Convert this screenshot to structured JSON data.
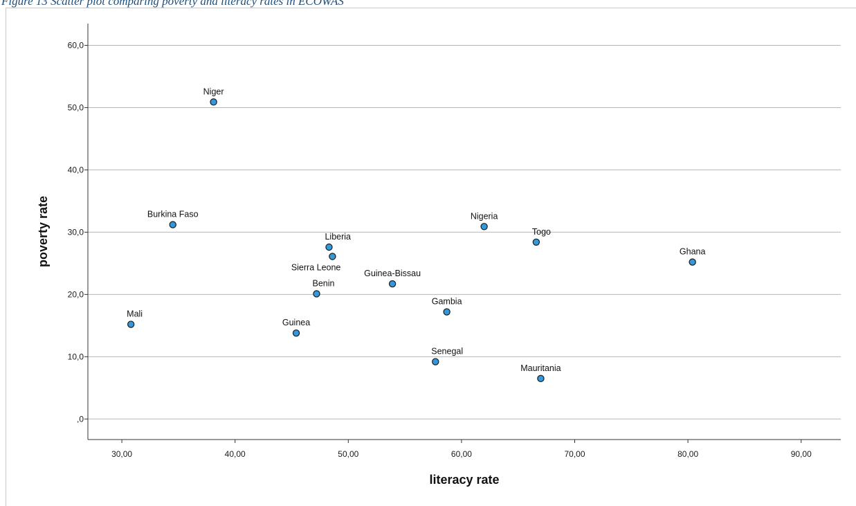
{
  "caption": "Figure 13 Scatter plot comparing poverty and literacy rates in ECOWAS",
  "chart_data": {
    "type": "scatter",
    "xlabel": "literacy rate",
    "ylabel": "poverty rate",
    "xlim": [
      27.0,
      93.5
    ],
    "ylim": [
      -3.3,
      63.5
    ],
    "xticks": [
      30,
      40,
      50,
      60,
      70,
      80,
      90
    ],
    "xtick_labels": [
      "30,00",
      "40,00",
      "50,00",
      "60,00",
      "70,00",
      "80,00",
      "90,00"
    ],
    "yticks": [
      0,
      10,
      20,
      30,
      40,
      50,
      60
    ],
    "ytick_labels": [
      ",0",
      "10,0",
      "20,0",
      "30,0",
      "40,0",
      "50,0",
      "60,0"
    ],
    "grid": "horizontal",
    "marker_color": "#3399dd",
    "points": [
      {
        "label": "Niger",
        "x": 38.1,
        "y": 50.9,
        "label_pos": "above"
      },
      {
        "label": "Burkina Faso",
        "x": 34.5,
        "y": 31.2,
        "label_pos": "above"
      },
      {
        "label": "Mali",
        "x": 30.8,
        "y": 15.2,
        "label_pos": "above-right"
      },
      {
        "label": "Liberia",
        "x": 48.3,
        "y": 27.6,
        "label_pos": "above-right"
      },
      {
        "label": "Sierra Leone",
        "x": 48.6,
        "y": 26.1,
        "label_pos": "below-left"
      },
      {
        "label": "Benin",
        "x": 47.2,
        "y": 20.1,
        "label_pos": "above-right"
      },
      {
        "label": "Guinea",
        "x": 45.4,
        "y": 13.8,
        "label_pos": "above"
      },
      {
        "label": "Guinea-Bissau",
        "x": 53.9,
        "y": 21.7,
        "label_pos": "above"
      },
      {
        "label": "Nigeria",
        "x": 62.0,
        "y": 30.9,
        "label_pos": "above"
      },
      {
        "label": "Togo",
        "x": 66.6,
        "y": 28.4,
        "label_pos": "above-right"
      },
      {
        "label": "Gambia",
        "x": 58.7,
        "y": 17.2,
        "label_pos": "above"
      },
      {
        "label": "Senegal",
        "x": 57.7,
        "y": 9.2,
        "label_pos": "above-right"
      },
      {
        "label": "Mauritania",
        "x": 67.0,
        "y": 6.5,
        "label_pos": "above"
      },
      {
        "label": "Ghana",
        "x": 80.4,
        "y": 25.2,
        "label_pos": "above"
      }
    ]
  }
}
